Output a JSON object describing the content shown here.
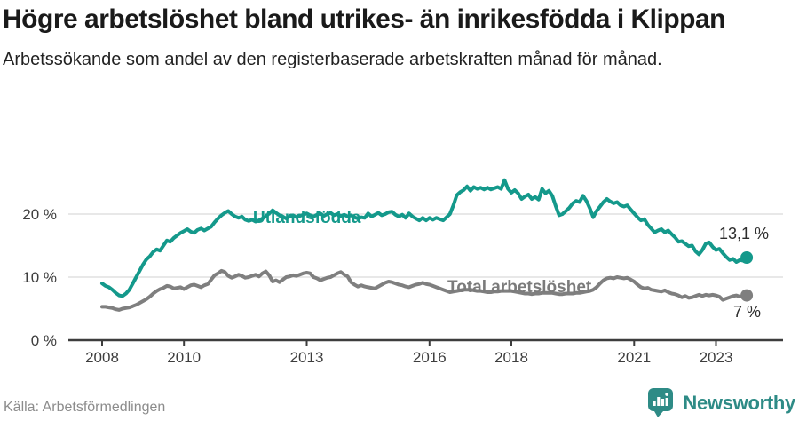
{
  "header": {
    "title": "Högre arbetslöshet bland utrikes- än inrikesfödda i Klippan",
    "subtitle": "Arbetssökande som andel av den registerbaserade arbetskraften månad för månad."
  },
  "footer": {
    "source": "Källa: Arbetsförmedlingen",
    "brand": "Newsworthy"
  },
  "colors": {
    "teal": "#14998b",
    "gray": "#7f7f7f",
    "axis": "#3d3d3d",
    "grid": "#d9d9d9",
    "value_label": "#2d2d2d",
    "brand_teal": "#2e8b86"
  },
  "chart_data": {
    "type": "line",
    "y_unit": "percent",
    "x_start_year": 2008,
    "x_step_years": 0.0833333,
    "xlim": [
      2008,
      2023.75
    ],
    "ylim": [
      0,
      27
    ],
    "grid": true,
    "xticks": [
      2008,
      2010,
      2013,
      2016,
      2018,
      2021,
      2023
    ],
    "yticks": [
      {
        "v": 0,
        "label": "0 %"
      },
      {
        "v": 10,
        "label": "10 %"
      },
      {
        "v": 20,
        "label": "20 %"
      }
    ],
    "series": [
      {
        "name": "Utlandsfödda",
        "color": "#14998b",
        "end_label": "13,1 %",
        "end_value": 13.1,
        "values": [
          9.0,
          8.6,
          8.4,
          8.0,
          7.5,
          7.1,
          7.0,
          7.4,
          8.0,
          9.0,
          10.0,
          11.0,
          12.0,
          12.8,
          13.3,
          14.0,
          14.4,
          14.2,
          15.0,
          15.8,
          15.6,
          16.2,
          16.6,
          17.0,
          17.3,
          17.6,
          17.2,
          17.0,
          17.5,
          17.7,
          17.4,
          17.7,
          18.0,
          18.7,
          19.3,
          19.8,
          20.2,
          20.5,
          20.0,
          19.6,
          19.4,
          19.6,
          19.1,
          18.9,
          19.1,
          18.8,
          19.0,
          19.3,
          19.6,
          20.1,
          20.6,
          20.2,
          19.8,
          19.6,
          19.3,
          19.6,
          19.8,
          19.5,
          19.7,
          19.9,
          20.1,
          19.8,
          19.6,
          19.9,
          20.1,
          19.7,
          20.0,
          20.2,
          19.8,
          20.0,
          19.7,
          19.9,
          19.6,
          19.8,
          19.5,
          19.3,
          19.5,
          19.4,
          20.1,
          19.6,
          19.9,
          20.2,
          19.8,
          20.0,
          20.3,
          20.4,
          19.9,
          19.6,
          19.9,
          19.4,
          20.1,
          19.6,
          19.3,
          19.0,
          19.4,
          19.0,
          19.4,
          19.1,
          19.4,
          19.2,
          19.0,
          19.5,
          20.0,
          21.4,
          23.0,
          23.5,
          23.8,
          24.4,
          23.7,
          24.3,
          24.0,
          24.2,
          23.9,
          24.2,
          23.9,
          24.1,
          24.3,
          24.0,
          25.4,
          24.0,
          23.4,
          23.8,
          23.3,
          22.4,
          22.8,
          23.1,
          22.4,
          22.7,
          22.3,
          24.0,
          23.3,
          23.7,
          22.9,
          21.3,
          19.8,
          20.0,
          20.5,
          21.0,
          21.7,
          22.1,
          21.9,
          22.9,
          22.1,
          20.9,
          19.5,
          20.5,
          21.2,
          21.9,
          22.4,
          22.0,
          21.7,
          21.9,
          21.4,
          21.2,
          21.4,
          20.7,
          20.1,
          19.5,
          19.0,
          19.2,
          18.3,
          17.7,
          17.1,
          17.4,
          17.6,
          17.1,
          17.4,
          16.8,
          16.3,
          15.6,
          15.7,
          15.3,
          14.9,
          15.0,
          14.1,
          13.6,
          14.3,
          15.3,
          15.5,
          14.8,
          14.3,
          14.5,
          13.8,
          13.2,
          12.7,
          12.9,
          12.4,
          12.7,
          12.6,
          13.1
        ]
      },
      {
        "name": "Total arbetslöshet",
        "color": "#7f7f7f",
        "end_label": "7 %",
        "end_value": 7.0,
        "values": [
          5.3,
          5.3,
          5.2,
          5.1,
          4.9,
          4.8,
          5.0,
          5.1,
          5.2,
          5.4,
          5.6,
          5.9,
          6.2,
          6.5,
          6.9,
          7.4,
          7.8,
          8.1,
          8.3,
          8.6,
          8.5,
          8.2,
          8.3,
          8.4,
          8.1,
          8.4,
          8.7,
          8.8,
          8.6,
          8.4,
          8.7,
          8.9,
          9.6,
          10.3,
          10.6,
          11.0,
          10.8,
          10.2,
          9.9,
          10.1,
          10.4,
          10.2,
          9.9,
          10.0,
          10.2,
          10.4,
          10.1,
          10.6,
          10.9,
          10.3,
          9.3,
          9.5,
          9.2,
          9.6,
          10.0,
          10.1,
          10.3,
          10.2,
          10.4,
          10.6,
          10.7,
          10.6,
          10.0,
          9.8,
          9.5,
          9.7,
          9.9,
          10.0,
          10.3,
          10.6,
          10.8,
          10.4,
          10.1,
          9.2,
          8.8,
          8.5,
          8.7,
          8.5,
          8.4,
          8.3,
          8.2,
          8.5,
          8.8,
          9.1,
          9.3,
          9.2,
          9.0,
          8.8,
          8.7,
          8.5,
          8.4,
          8.6,
          8.8,
          8.9,
          9.1,
          8.9,
          8.8,
          8.6,
          8.4,
          8.2,
          8.0,
          7.8,
          7.6,
          7.7,
          7.8,
          7.9,
          8.0,
          8.0,
          8.0,
          7.9,
          7.8,
          7.8,
          7.7,
          7.6,
          7.6,
          7.7,
          7.7,
          7.8,
          7.8,
          7.8,
          7.8,
          7.7,
          7.6,
          7.5,
          7.4,
          7.4,
          7.3,
          7.4,
          7.4,
          7.5,
          7.5,
          7.5,
          7.5,
          7.4,
          7.3,
          7.3,
          7.4,
          7.4,
          7.4,
          7.5,
          7.5,
          7.6,
          7.7,
          7.8,
          8.0,
          8.4,
          9.0,
          9.5,
          9.8,
          9.9,
          9.8,
          10.0,
          9.9,
          9.8,
          9.9,
          9.6,
          9.3,
          8.8,
          8.4,
          8.2,
          8.3,
          8.0,
          7.9,
          7.8,
          7.7,
          7.9,
          7.6,
          7.4,
          7.3,
          7.1,
          6.8,
          7.0,
          6.7,
          6.8,
          7.0,
          7.2,
          7.0,
          7.2,
          7.1,
          7.2,
          7.1,
          6.9,
          6.4,
          6.6,
          6.8,
          7.0,
          7.1,
          6.9,
          7.0,
          7.1
        ]
      }
    ]
  }
}
